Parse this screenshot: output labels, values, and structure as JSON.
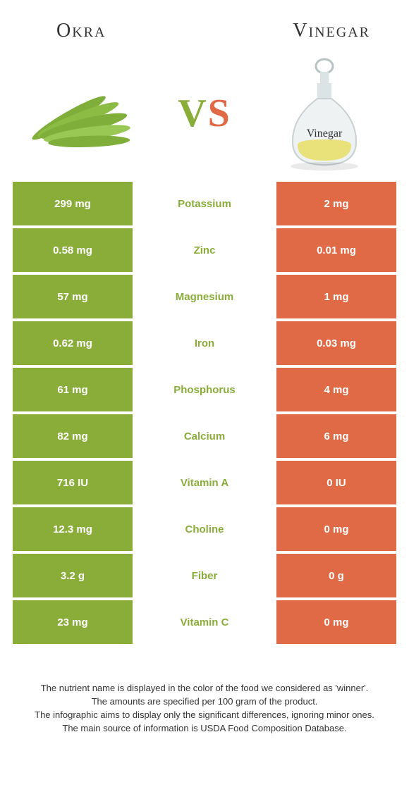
{
  "colors": {
    "green": "#8aad3a",
    "orange": "#e06a45",
    "text": "#333333",
    "white": "#ffffff"
  },
  "header": {
    "left": "Okra",
    "right": "Vinegar",
    "vs_v": "V",
    "vs_s": "S"
  },
  "rows": [
    {
      "left": "299 mg",
      "label": "Potassium",
      "right": "2 mg",
      "winner": "left"
    },
    {
      "left": "0.58 mg",
      "label": "Zinc",
      "right": "0.01 mg",
      "winner": "left"
    },
    {
      "left": "57 mg",
      "label": "Magnesium",
      "right": "1 mg",
      "winner": "left"
    },
    {
      "left": "0.62 mg",
      "label": "Iron",
      "right": "0.03 mg",
      "winner": "left"
    },
    {
      "left": "61 mg",
      "label": "Phosphorus",
      "right": "4 mg",
      "winner": "left"
    },
    {
      "left": "82 mg",
      "label": "Calcium",
      "right": "6 mg",
      "winner": "left"
    },
    {
      "left": "716 IU",
      "label": "Vitamin A",
      "right": "0 IU",
      "winner": "left"
    },
    {
      "left": "12.3 mg",
      "label": "Choline",
      "right": "0 mg",
      "winner": "left"
    },
    {
      "left": "3.2 g",
      "label": "Fiber",
      "right": "0 g",
      "winner": "left"
    },
    {
      "left": "23 mg",
      "label": "Vitamin C",
      "right": "0 mg",
      "winner": "left"
    }
  ],
  "footer": {
    "line1": "The nutrient name is displayed in the color of the food we considered as 'winner'.",
    "line2": "The amounts are specified per 100 gram of the product.",
    "line3": "The infographic aims to display only the significant differences, ignoring minor ones.",
    "line4": "The main source of information is USDA Food Composition Database."
  }
}
